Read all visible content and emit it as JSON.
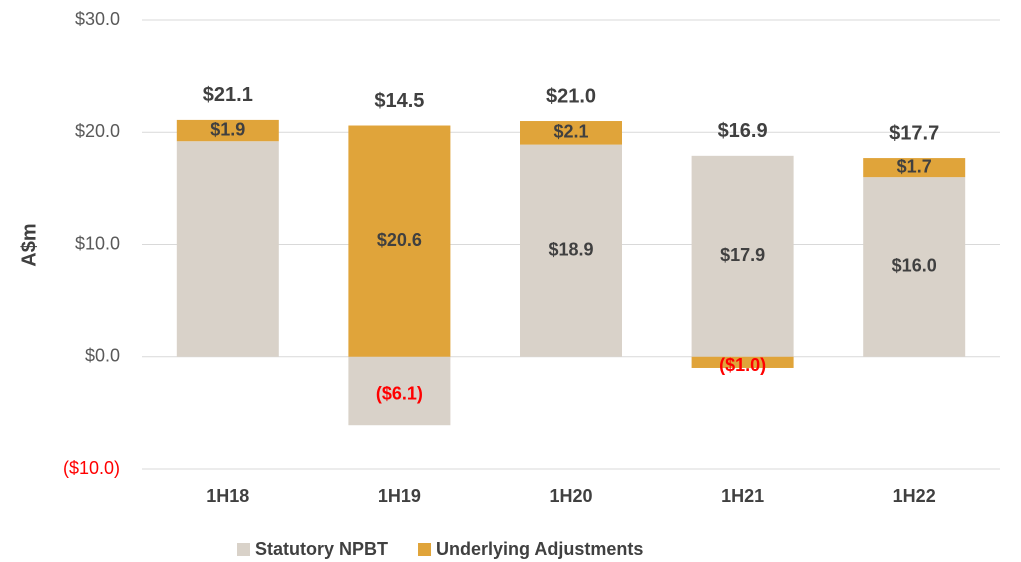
{
  "chart_data": {
    "type": "stacked_bar",
    "y_label": "A$m",
    "categories": [
      "1H18",
      "1H19",
      "1H20",
      "1H21",
      "1H22"
    ],
    "series": [
      {
        "name": "Statutory NPBT",
        "color": "#d9d2c9",
        "values": [
          19.2,
          -6.1,
          18.9,
          17.9,
          16.0
        ],
        "value_labels": [
          null,
          "($6.1)",
          "$18.9",
          "$17.9",
          "$16.0"
        ]
      },
      {
        "name": "Underlying Adjustments",
        "color": "#e0a43a",
        "values": [
          1.9,
          20.6,
          2.1,
          -1.0,
          1.7
        ],
        "value_labels": [
          "$1.9",
          "$20.6",
          "$2.1",
          "($1.0)",
          "$1.7"
        ]
      }
    ],
    "totals": [
      21.1,
      14.5,
      21.0,
      16.9,
      17.7
    ],
    "total_labels": [
      "$21.1",
      "$14.5",
      "$21.0",
      "$16.9",
      "$17.7"
    ],
    "ylim": [
      -10,
      30
    ],
    "yticks": [
      {
        "value": -10,
        "label": "($10.0)"
      },
      {
        "value": 0,
        "label": "$0.0"
      },
      {
        "value": 10,
        "label": "$10.0"
      },
      {
        "value": 20,
        "label": "$20.0"
      },
      {
        "value": 30,
        "label": "$30.0"
      }
    ],
    "grid": true,
    "negative_label_color": "#ff0000",
    "legend": "bottom"
  }
}
